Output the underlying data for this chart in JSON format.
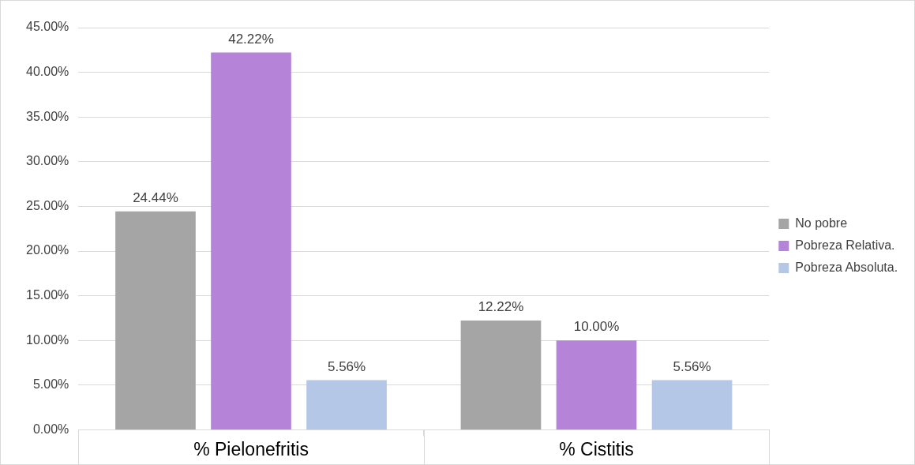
{
  "chart_data": {
    "type": "bar",
    "categories": [
      "% Pielonefritis",
      "% Cistitis"
    ],
    "series": [
      {
        "name": "No pobre",
        "color": "#a5a5a5",
        "values": [
          24.44,
          12.22
        ],
        "value_labels": [
          "24.44%",
          "12.22%"
        ]
      },
      {
        "name": "Pobreza Relativa.",
        "color": "#b584d9",
        "values": [
          42.22,
          10.0
        ],
        "value_labels": [
          "42.22%",
          "10.00%"
        ]
      },
      {
        "name": "Pobreza Absoluta.",
        "color": "#b4c7e7",
        "values": [
          5.56,
          5.56
        ],
        "value_labels": [
          "5.56%",
          "5.56%"
        ]
      }
    ],
    "ylim": [
      0,
      45
    ],
    "yticks": [
      {
        "value": 0,
        "label": "0.00%"
      },
      {
        "value": 5,
        "label": "5.00%"
      },
      {
        "value": 10,
        "label": "10.00%"
      },
      {
        "value": 15,
        "label": "15.00%"
      },
      {
        "value": 20,
        "label": "20.00%"
      },
      {
        "value": 25,
        "label": "25.00%"
      },
      {
        "value": 30,
        "label": "30.00%"
      },
      {
        "value": 35,
        "label": "35.00%"
      },
      {
        "value": 40,
        "label": "40.00%"
      },
      {
        "value": 45,
        "label": "45.00%"
      }
    ],
    "grid": "y",
    "legend": "right"
  }
}
